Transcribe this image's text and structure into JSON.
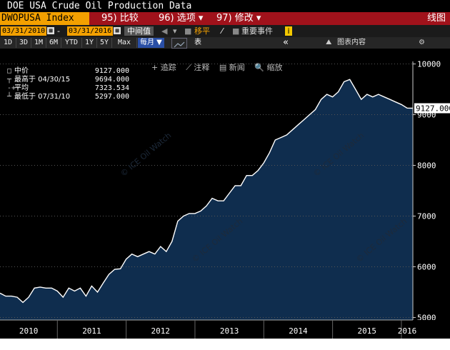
{
  "header": {
    "title": "DOE USA Crude Oil Production Data",
    "ticker": "DWOPUSA Index",
    "menu": [
      "95) 比较",
      "96) 选项 ▾",
      "97) 修改 ▾"
    ],
    "right_label": "线图"
  },
  "controls": {
    "start_date": "03/31/2010",
    "end_date": "03/31/2016",
    "calc_mode": "中间值",
    "moving_avg_label": "移平",
    "events_label": "重要事件",
    "ranges": [
      "1D",
      "3D",
      "1M",
      "6M",
      "YTD",
      "1Y",
      "5Y",
      "Max"
    ],
    "frequency": "每月 ▼",
    "table_label": "表",
    "collapse": "«",
    "chart_content_label": "图表内容",
    "gear": "⚙"
  },
  "tools": [
    "+ 追踪",
    "⟋ 注释",
    "▤ 新闻",
    "🔍 缩放"
  ],
  "legend": [
    {
      "label": "中价",
      "value": "9127.000"
    },
    {
      "label": "最高于 04/30/15",
      "value": "9694.000"
    },
    {
      "label": "平均",
      "value": "7323.534"
    },
    {
      "label": "最低于 07/31/10",
      "value": "5297.000"
    }
  ],
  "last_value_tag": "9127.000",
  "watermark": "© ICE Oil Watch",
  "colors": {
    "terminal_bg": "#000000",
    "menu_bar": "#a0121b",
    "accent_orange": "#f3a000",
    "area_fill": "#0f2d4e",
    "line": "#ffffff"
  },
  "chart_data": {
    "type": "area",
    "title": "DOE USA Crude Oil Production Data",
    "xlabel": "",
    "ylabel": "",
    "ylim": [
      4950,
      10050
    ],
    "y_ticks": [
      5000,
      6000,
      7000,
      8000,
      9000,
      10000
    ],
    "x_tick_labels": [
      "2010",
      "2011",
      "2012",
      "2013",
      "2014",
      "2015",
      "2016"
    ],
    "grid": true,
    "series": [
      {
        "x": [
          "2010-03",
          "2010-04",
          "2010-05",
          "2010-06",
          "2010-07",
          "2010-08",
          "2010-09",
          "2010-10",
          "2010-11",
          "2010-12",
          "2011-01",
          "2011-02",
          "2011-03",
          "2011-04",
          "2011-05",
          "2011-06",
          "2011-07",
          "2011-08",
          "2011-09",
          "2011-10",
          "2011-11",
          "2011-12",
          "2012-01",
          "2012-02",
          "2012-03",
          "2012-04",
          "2012-05",
          "2012-06",
          "2012-07",
          "2012-08",
          "2012-09",
          "2012-10",
          "2012-11",
          "2012-12",
          "2013-01",
          "2013-02",
          "2013-03",
          "2013-04",
          "2013-05",
          "2013-06",
          "2013-07",
          "2013-08",
          "2013-09",
          "2013-10",
          "2013-11",
          "2013-12",
          "2014-01",
          "2014-02",
          "2014-03",
          "2014-04",
          "2014-05",
          "2014-06",
          "2014-07",
          "2014-08",
          "2014-09",
          "2014-10",
          "2014-11",
          "2014-12",
          "2015-01",
          "2015-02",
          "2015-03",
          "2015-04",
          "2015-05",
          "2015-06",
          "2015-07",
          "2015-08",
          "2015-09",
          "2015-10",
          "2015-11",
          "2015-12",
          "2016-01",
          "2016-02",
          "2016-03"
        ],
        "values": [
          5480,
          5420,
          5420,
          5400,
          5297,
          5400,
          5580,
          5600,
          5580,
          5580,
          5520,
          5400,
          5580,
          5520,
          5580,
          5420,
          5620,
          5500,
          5680,
          5850,
          5950,
          5960,
          6150,
          6250,
          6200,
          6250,
          6300,
          6250,
          6400,
          6300,
          6500,
          6900,
          7000,
          7050,
          7050,
          7100,
          7200,
          7350,
          7300,
          7300,
          7450,
          7600,
          7600,
          7800,
          7800,
          7900,
          8050,
          8250,
          8500,
          8550,
          8600,
          8700,
          8800,
          8900,
          9000,
          9100,
          9300,
          9400,
          9350,
          9450,
          9650,
          9694,
          9500,
          9300,
          9400,
          9350,
          9400,
          9350,
          9300,
          9250,
          9200,
          9130,
          9127
        ]
      }
    ]
  }
}
